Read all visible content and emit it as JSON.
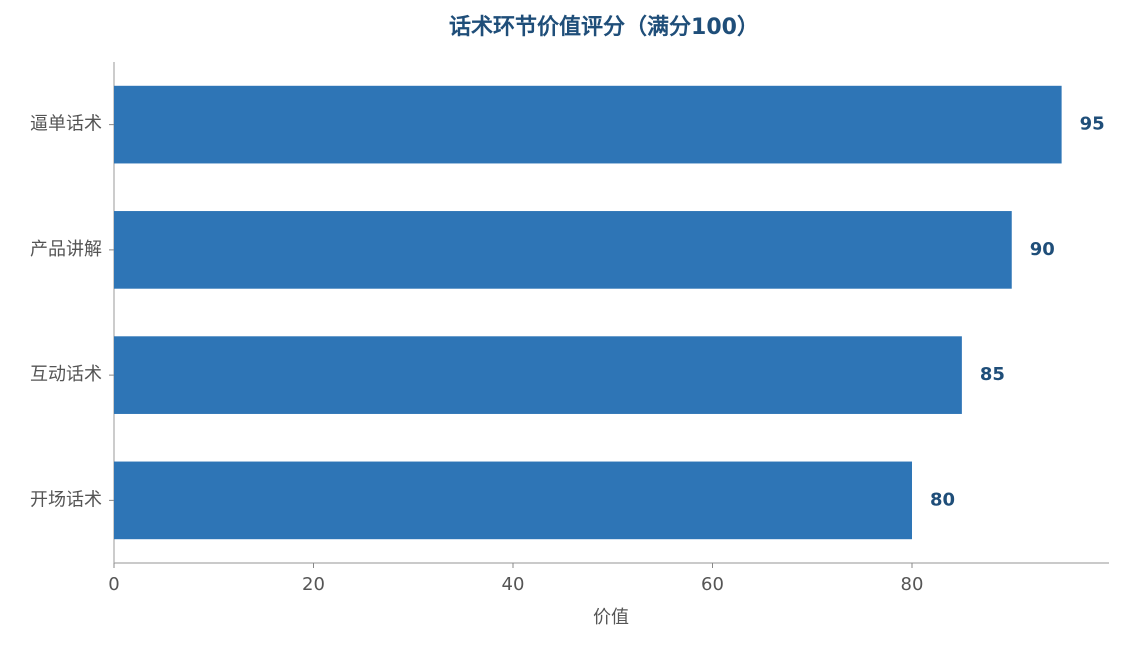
{
  "chart_data": {
    "type": "bar",
    "orientation": "horizontal",
    "title": "话术环节价值评分（满分100）",
    "x_label": "价值",
    "categories": [
      "逼单话术",
      "产品讲解",
      "互动话术",
      "开场话术"
    ],
    "values": [
      95,
      90,
      85,
      80
    ],
    "color": "#2e75b6",
    "xlim": [
      0,
      99.75
    ],
    "xticks": [
      0,
      20,
      40,
      60,
      80
    ]
  }
}
